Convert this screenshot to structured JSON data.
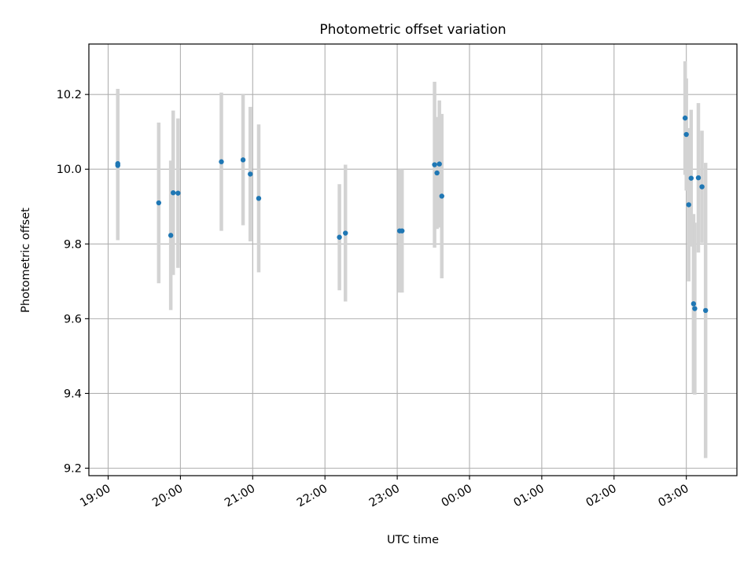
{
  "chart_data": {
    "type": "scatter",
    "title": "Photometric offset variation",
    "xlabel": "UTC time",
    "ylabel": "Photometric offset",
    "grid": true,
    "legend": "none",
    "colors": {
      "points": "#1f77b4",
      "error_bars": "#d3d3d3",
      "grid": "#b0b0b0"
    },
    "x_ticks": [
      "19:00",
      "20:00",
      "21:00",
      "22:00",
      "23:00",
      "00:00",
      "01:00",
      "02:00",
      "03:00"
    ],
    "y_ticks": [
      "9.2",
      "9.4",
      "9.6",
      "9.8",
      "10.0",
      "10.2"
    ],
    "ylim": [
      9.18,
      10.335
    ],
    "points": [
      {
        "time": "19:08",
        "y": 10.015,
        "yerr": 0.2
      },
      {
        "time": "19:08",
        "y": 10.01,
        "yerr": 0.2
      },
      {
        "time": "19:42",
        "y": 9.91,
        "yerr": 0.215
      },
      {
        "time": "19:52",
        "y": 9.823,
        "yerr": 0.2
      },
      {
        "time": "19:54",
        "y": 9.937,
        "yerr": 0.22
      },
      {
        "time": "19:58",
        "y": 9.936,
        "yerr": 0.2
      },
      {
        "time": "20:34",
        "y": 10.02,
        "yerr": 0.185
      },
      {
        "time": "20:52",
        "y": 10.025,
        "yerr": 0.175
      },
      {
        "time": "20:58",
        "y": 9.987,
        "yerr": 0.18
      },
      {
        "time": "21:05",
        "y": 9.922,
        "yerr": 0.198
      },
      {
        "time": "22:12",
        "y": 9.818,
        "yerr": 0.142
      },
      {
        "time": "22:17",
        "y": 9.829,
        "yerr": 0.183
      },
      {
        "time": "23:02",
        "y": 9.835,
        "yerr": 0.165
      },
      {
        "time": "23:04",
        "y": 9.835,
        "yerr": 0.165
      },
      {
        "time": "23:31",
        "y": 10.012,
        "yerr": 0.222
      },
      {
        "time": "23:33",
        "y": 9.99,
        "yerr": 0.15
      },
      {
        "time": "23:35",
        "y": 10.014,
        "yerr": 0.17
      },
      {
        "time": "23:37",
        "y": 9.928,
        "yerr": 0.22
      },
      {
        "time": "02:59",
        "y": 10.137,
        "yerr": 0.152
      },
      {
        "time": "03:00",
        "y": 10.093,
        "yerr": 0.15
      },
      {
        "time": "03:02",
        "y": 9.905,
        "yerr": 0.205
      },
      {
        "time": "03:04",
        "y": 9.976,
        "yerr": 0.183
      },
      {
        "time": "03:06",
        "y": 9.64,
        "yerr": 0.24
      },
      {
        "time": "03:07",
        "y": 9.627,
        "yerr": 0.23
      },
      {
        "time": "03:10",
        "y": 9.977,
        "yerr": 0.2
      },
      {
        "time": "03:13",
        "y": 9.953,
        "yerr": 0.15
      },
      {
        "time": "03:16",
        "y": 9.622,
        "yerr": 0.395
      }
    ]
  }
}
